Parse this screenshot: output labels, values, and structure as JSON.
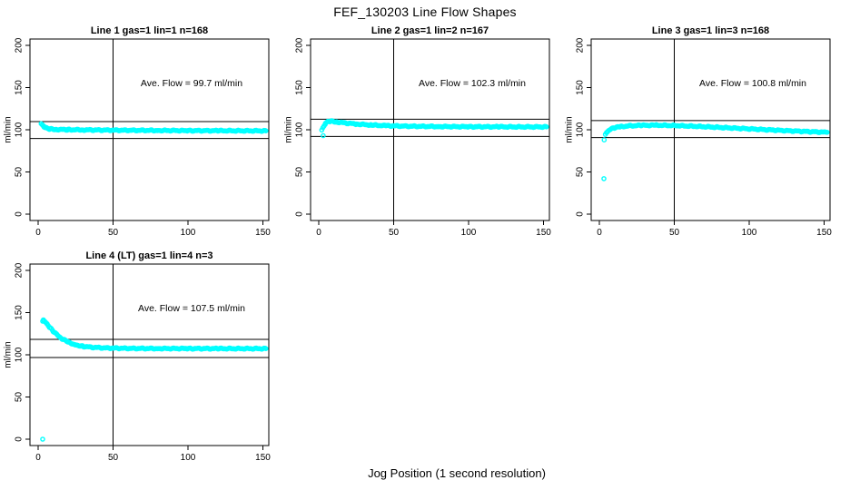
{
  "figure": {
    "title": "FEF_130203  Line Flow Shapes",
    "x_axis_label": "Jog Position (1 second resolution)",
    "background_color": "#ffffff",
    "axis_color": "#000000",
    "point_color": "#00ffff"
  },
  "chart_data": [
    {
      "type": "scatter",
      "title": "Line 1 gas=1 lin=1 n=168",
      "n": 168,
      "annotation": "Ave. Flow =  99.7  ml/min",
      "ave_flow_ml_min": 99.7,
      "ylabel": "ml/min",
      "xlim": [
        0,
        150
      ],
      "ylim": [
        0,
        200
      ],
      "xticks": [
        0,
        50,
        100,
        150
      ],
      "yticks": [
        0,
        50,
        100,
        150,
        200
      ],
      "vline_x": 50,
      "hlines": [
        109.7,
        89.7
      ],
      "legend": "none",
      "grid": false,
      "series_keypoints": [
        [
          2,
          107
        ],
        [
          3,
          105
        ],
        [
          4,
          103.5
        ],
        [
          6,
          101.8
        ],
        [
          8,
          101
        ],
        [
          12,
          100.4
        ],
        [
          20,
          100.1
        ],
        [
          30,
          99.9
        ],
        [
          45,
          99.6
        ],
        [
          60,
          99.4
        ],
        [
          80,
          99.2
        ],
        [
          100,
          99.0
        ],
        [
          120,
          98.9
        ],
        [
          135,
          98.8
        ],
        [
          152,
          98.7
        ]
      ],
      "outliers": []
    },
    {
      "type": "scatter",
      "title": "Line 2 gas=1 lin=2 n=167",
      "n": 167,
      "annotation": "Ave. Flow =  102.3  ml/min",
      "ave_flow_ml_min": 102.3,
      "ylabel": "ml/min",
      "xlim": [
        0,
        150
      ],
      "ylim": [
        0,
        200
      ],
      "xticks": [
        0,
        50,
        100,
        150
      ],
      "yticks": [
        0,
        50,
        100,
        150,
        200
      ],
      "vline_x": 50,
      "hlines": [
        112.5,
        92.1
      ],
      "legend": "none",
      "grid": false,
      "series_keypoints": [
        [
          2,
          99.5
        ],
        [
          3.5,
          104
        ],
        [
          4.5,
          107.5
        ],
        [
          6,
          109.8
        ],
        [
          8,
          110.3
        ],
        [
          12,
          109.3
        ],
        [
          18,
          108
        ],
        [
          25,
          106.8
        ],
        [
          35,
          105.6
        ],
        [
          45,
          104.8
        ],
        [
          60,
          104.2
        ],
        [
          80,
          103.8
        ],
        [
          100,
          103.6
        ],
        [
          120,
          103.5
        ],
        [
          135,
          103.4
        ],
        [
          152,
          103.4
        ]
      ],
      "outliers": [
        [
          3,
          93
        ]
      ]
    },
    {
      "type": "scatter",
      "title": "Line 3 gas=1 lin=3 n=168",
      "n": 168,
      "annotation": "Ave. Flow =  100.8  ml/min",
      "ave_flow_ml_min": 100.8,
      "ylabel": "ml/min",
      "xlim": [
        0,
        150
      ],
      "ylim": [
        0,
        200
      ],
      "xticks": [
        0,
        50,
        100,
        150
      ],
      "yticks": [
        0,
        50,
        100,
        150,
        200
      ],
      "vline_x": 50,
      "hlines": [
        110.9,
        90.7
      ],
      "legend": "none",
      "grid": false,
      "series_keypoints": [
        [
          4,
          95
        ],
        [
          5,
          97.5
        ],
        [
          6.5,
          99.5
        ],
        [
          8,
          101
        ],
        [
          10,
          102.3
        ],
        [
          14,
          103.6
        ],
        [
          20,
          104.6
        ],
        [
          28,
          105.2
        ],
        [
          38,
          105.4
        ],
        [
          50,
          105
        ],
        [
          65,
          104
        ],
        [
          80,
          102.8
        ],
        [
          95,
          101.5
        ],
        [
          110,
          100.2
        ],
        [
          125,
          98.9
        ],
        [
          140,
          97.8
        ],
        [
          152,
          97
        ]
      ],
      "outliers": [
        [
          3,
          42
        ],
        [
          3.2,
          88
        ]
      ]
    },
    {
      "type": "scatter",
      "title": "Line 4 (LT) gas=1 lin=4 n=3",
      "n": 3,
      "annotation": "Ave. Flow =  107.5  ml/min",
      "ave_flow_ml_min": 107.5,
      "ylabel": "ml/min",
      "xlim": [
        0,
        150
      ],
      "ylim": [
        0,
        200
      ],
      "xticks": [
        0,
        50,
        100,
        150
      ],
      "yticks": [
        0,
        50,
        100,
        150,
        200
      ],
      "vline_x": 50,
      "hlines": [
        118.3,
        96.8
      ],
      "legend": "none",
      "grid": false,
      "series_keypoints": [
        [
          3,
          139.5
        ],
        [
          3.5,
          141
        ],
        [
          4,
          140.5
        ],
        [
          5,
          139
        ],
        [
          6,
          136.5
        ],
        [
          8,
          132
        ],
        [
          10,
          128
        ],
        [
          13,
          123
        ],
        [
          16,
          119
        ],
        [
          20,
          115
        ],
        [
          25,
          111.8
        ],
        [
          30,
          110
        ],
        [
          36,
          108.9
        ],
        [
          45,
          108.1
        ],
        [
          60,
          107.6
        ],
        [
          80,
          107.4
        ],
        [
          100,
          107.4
        ],
        [
          120,
          107.3
        ],
        [
          135,
          107.3
        ],
        [
          152,
          107.3
        ]
      ],
      "outliers": [
        [
          3,
          0
        ]
      ]
    }
  ]
}
